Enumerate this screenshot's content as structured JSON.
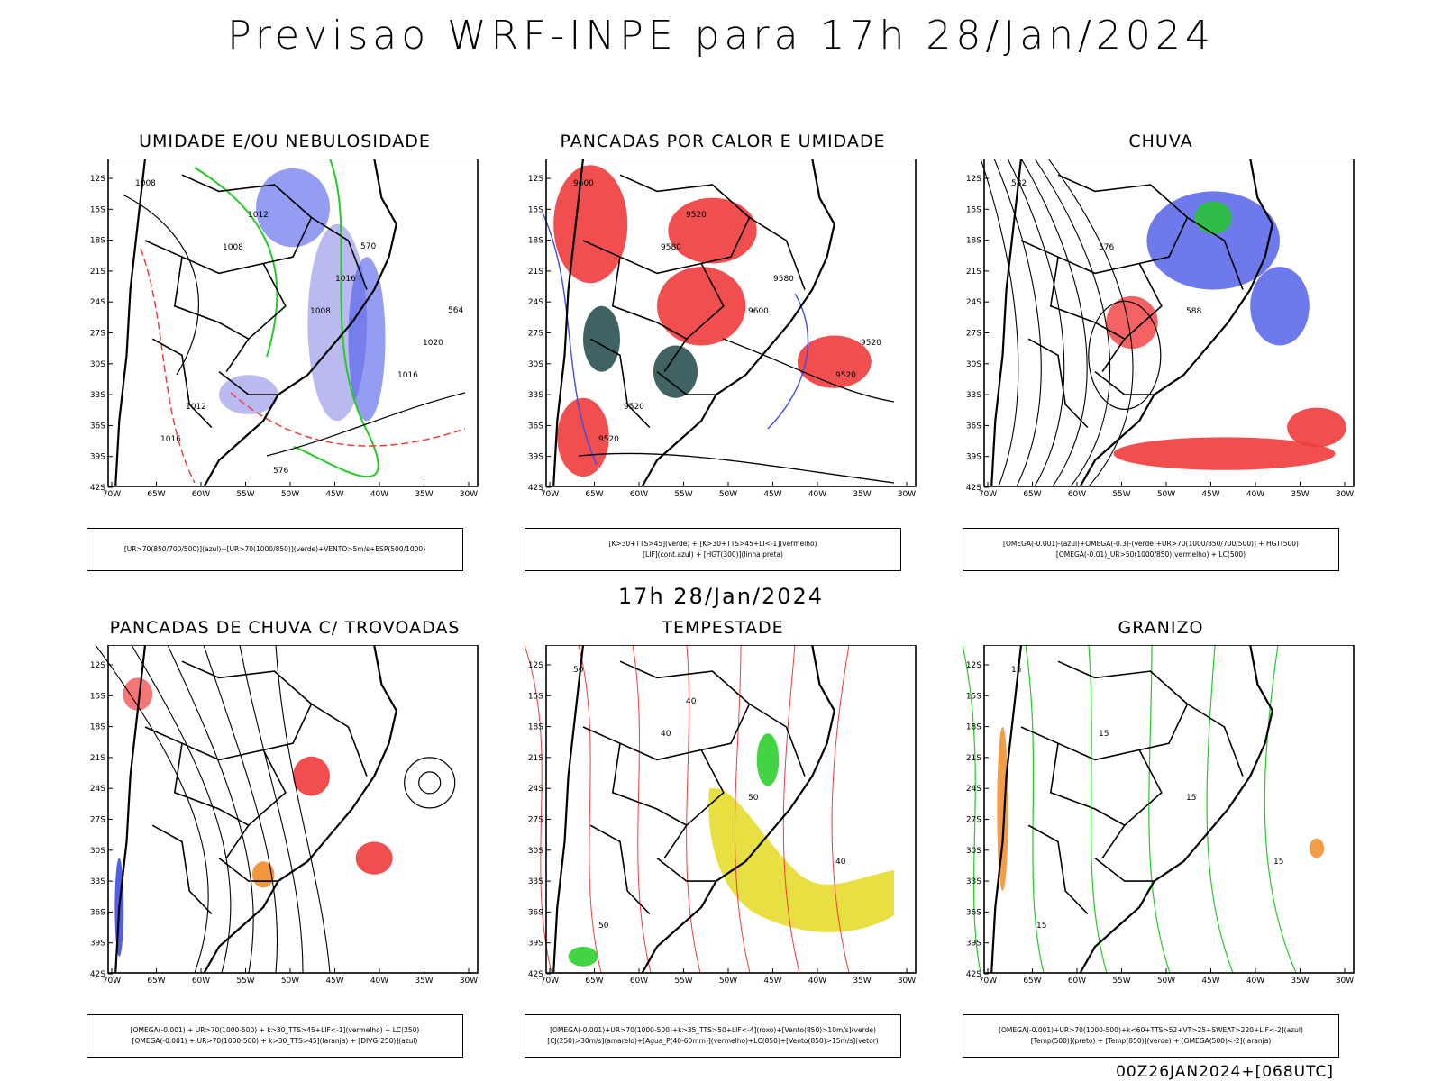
{
  "title": "Previsao WRF-INPE  para 17h 28/Jan/2024",
  "mid_date": "17h 28/Jan/2024",
  "footer": "00Z26JAN2024+[068UTC]",
  "axes": {
    "lat_labels": [
      "12S",
      "15S",
      "18S",
      "21S",
      "24S",
      "27S",
      "30S",
      "33S",
      "36S",
      "39S",
      "42S"
    ],
    "lon_labels": [
      "70W",
      "65W",
      "60W",
      "55W",
      "50W",
      "45W",
      "40W",
      "35W",
      "30W"
    ]
  },
  "panels": [
    {
      "id": "umidade",
      "title": "UMIDADE E/OU NEBULOSIDADE",
      "legend": [
        "[UR>70(850/700/500)](azul)+[UR>70(1000/850)](verde)+VENTO>5m/s+ESP(500/1000)"
      ],
      "contour_labels": [
        "1008",
        "1008",
        "1008",
        "1016",
        "1016",
        "1012",
        "1016",
        "1020",
        "1012",
        "576",
        "570",
        "564"
      ]
    },
    {
      "id": "pancadas-calor",
      "title": "PANCADAS POR CALOR E UMIDADE",
      "legend": [
        "[K>30+TTS>45](verde) + [K>30+TTS>45+LI<-1](vermelho)",
        "[LIF](cont.azul) + [HGT(300)](linha preta)"
      ],
      "contour_labels": [
        "9600",
        "9580",
        "9600",
        "9520",
        "9520",
        "9520",
        "9580",
        "9520",
        "9520"
      ]
    },
    {
      "id": "chuva",
      "title": "CHUVA",
      "legend": [
        "[OMEGA(-0.001)-(azul)+OMEGA(-0.3)-(verde)+UR>70(1000/850/700/500)] + HGT(500)",
        "[OMEGA(-0.01)_UR>50(1000/850)(vermelho) + LC(500)"
      ],
      "contour_labels": [
        "582",
        "576",
        "588"
      ]
    },
    {
      "id": "trovoadas",
      "title": "PANCADAS DE CHUVA C/ TROVOADAS",
      "legend": [
        "[OMEGA(-0.001) + UR>70(1000-500) + k>30_TTS>45+LIF<-1](vermelho) + LC(250)",
        "[OMEGA(-0.001) + UR>70(1000-500) + k>30_TTS>45](laranja) + [DIVG(250)](azul)"
      ],
      "contour_labels": []
    },
    {
      "id": "tempestade",
      "title": "TEMPESTADE",
      "legend": [
        "[OMEGA(-0.001)+UR>70(1000-500)+k>35_TTS>50+LIF<-4](roxo)+[Vento(850)>10m/s](verde)",
        "[CJ(250)>30m/s](amarelo)+[Agua_P(40-60mm)](vermelho)+LC(850)+[Vento(850)>15m/s](vetor)"
      ],
      "contour_labels": [
        "50",
        "40",
        "50",
        "40",
        "50",
        "40"
      ]
    },
    {
      "id": "granizo",
      "title": "GRANIZO",
      "legend": [
        "[OMEGA(-0.001)+UR>70(1000-500)+k<60+TTS>52+VT>25+SWEAT>220+LIF<-2](azul)",
        "[Temp(500)](preto) + [Temp(850)](verde) + [OMEGA(500)<-2](laranja)"
      ],
      "contour_labels": [
        "15",
        "15",
        "15",
        "15",
        "15"
      ]
    }
  ],
  "colors": {
    "red": "#f03c3c",
    "blue": "#3d4de6",
    "green": "#22cc22",
    "lavender": "#a9a9ee",
    "yellow": "#e6dc32",
    "dark_teal": "#1e4646",
    "orange": "#f08c28"
  }
}
